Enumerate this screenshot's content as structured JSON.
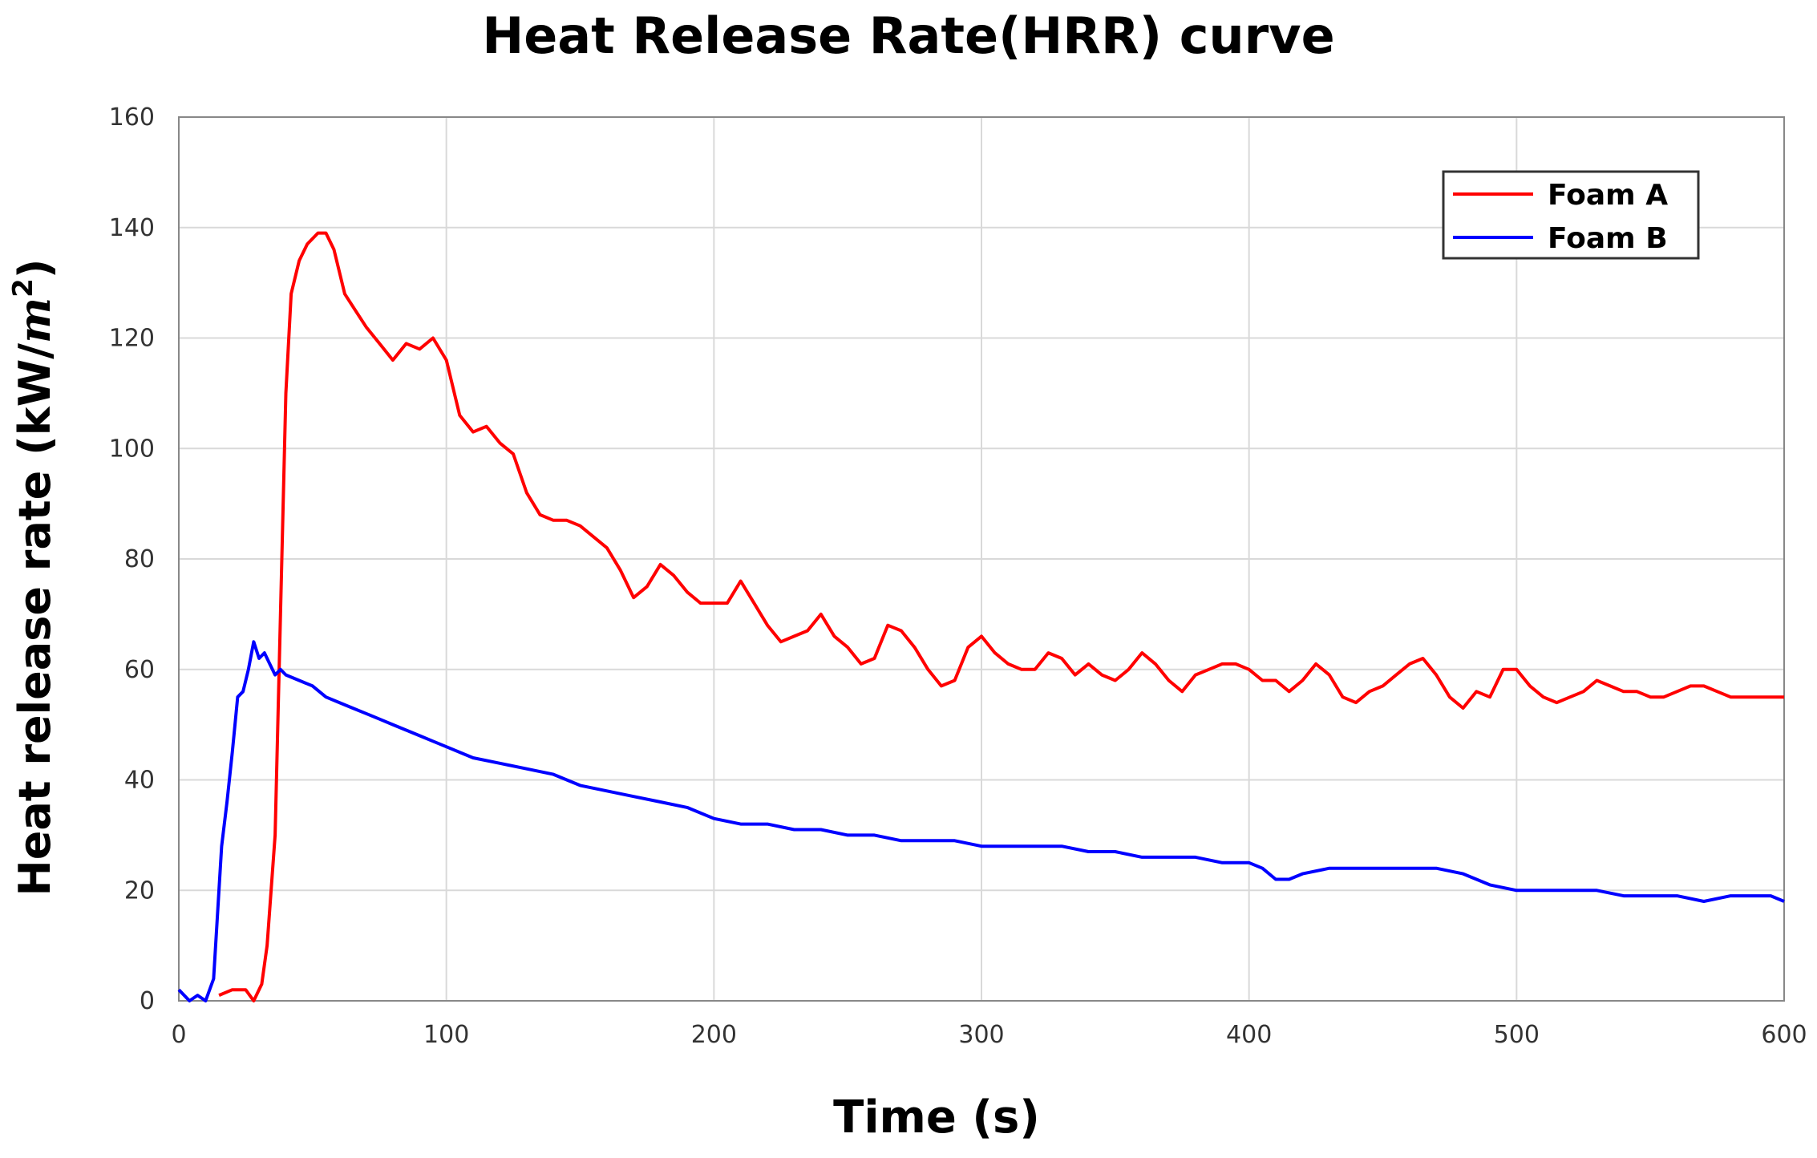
{
  "chart_data": {
    "type": "line",
    "title": "Heat Release Rate(HRR) curve",
    "xlabel": "Time (s)",
    "ylabel_prefix": "Heat release rate (kW/",
    "ylabel_unit_var": "m",
    "ylabel_unit_exp": "2",
    "ylabel_suffix": ")",
    "xlim": [
      0,
      600
    ],
    "ylim": [
      0,
      160
    ],
    "xticks": [
      0,
      100,
      200,
      300,
      400,
      500,
      600
    ],
    "yticks": [
      0,
      20,
      40,
      60,
      80,
      100,
      120,
      140,
      160
    ],
    "grid": true,
    "legend_position": "top-right",
    "series": [
      {
        "name": "Foam A",
        "color": "#ff0000",
        "x": [
          0,
          10,
          15,
          20,
          25,
          28,
          31,
          33,
          36,
          38,
          40,
          42,
          45,
          48,
          52,
          55,
          58,
          62,
          66,
          70,
          75,
          80,
          85,
          90,
          95,
          100,
          105,
          110,
          115,
          120,
          125,
          130,
          135,
          140,
          145,
          150,
          155,
          160,
          165,
          170,
          175,
          180,
          185,
          190,
          195,
          200,
          205,
          210,
          215,
          220,
          225,
          230,
          235,
          240,
          245,
          250,
          255,
          260,
          265,
          270,
          275,
          280,
          285,
          290,
          295,
          300,
          305,
          310,
          315,
          320,
          325,
          330,
          335,
          340,
          345,
          350,
          355,
          360,
          365,
          370,
          375,
          380,
          385,
          390,
          395,
          400,
          405,
          410,
          415,
          420,
          425,
          430,
          435,
          440,
          445,
          450,
          455,
          460,
          465,
          470,
          475,
          480,
          485,
          490,
          495,
          500,
          505,
          510,
          515,
          520,
          525,
          530,
          535,
          540,
          545,
          550,
          555,
          560,
          565,
          570,
          575,
          580,
          585,
          590,
          595,
          600
        ],
        "y": [
          null,
          null,
          1,
          2,
          2,
          0,
          3,
          10,
          30,
          70,
          110,
          128,
          134,
          137,
          139,
          139,
          136,
          128,
          125,
          122,
          119,
          116,
          119,
          118,
          120,
          116,
          106,
          103,
          104,
          101,
          99,
          92,
          88,
          87,
          87,
          86,
          84,
          82,
          78,
          73,
          75,
          79,
          77,
          74,
          72,
          72,
          72,
          76,
          72,
          68,
          65,
          66,
          67,
          70,
          66,
          64,
          61,
          62,
          68,
          67,
          64,
          60,
          57,
          58,
          64,
          66,
          63,
          61,
          60,
          60,
          63,
          62,
          59,
          61,
          59,
          58,
          60,
          63,
          61,
          58,
          56,
          59,
          60,
          61,
          61,
          60,
          58,
          58,
          56,
          58,
          61,
          59,
          55,
          54,
          56,
          57,
          59,
          61,
          62,
          59,
          55,
          53,
          56,
          55,
          60,
          60,
          57,
          55,
          54,
          55,
          56,
          58,
          57,
          56,
          56,
          55,
          55,
          56,
          57,
          57,
          56,
          55,
          55,
          55,
          55,
          55
        ]
      },
      {
        "name": "Foam B",
        "color": "#0000ff",
        "x": [
          0,
          4,
          7,
          10,
          13,
          16,
          18,
          20,
          22,
          24,
          26,
          28,
          30,
          32,
          34,
          36,
          38,
          40,
          45,
          50,
          55,
          60,
          65,
          70,
          75,
          80,
          85,
          90,
          95,
          100,
          110,
          120,
          130,
          140,
          150,
          160,
          170,
          180,
          190,
          200,
          210,
          220,
          230,
          240,
          250,
          260,
          270,
          280,
          290,
          300,
          310,
          320,
          330,
          340,
          350,
          360,
          370,
          380,
          390,
          400,
          405,
          410,
          415,
          420,
          430,
          440,
          450,
          460,
          470,
          480,
          485,
          490,
          500,
          510,
          520,
          530,
          540,
          550,
          560,
          570,
          580,
          590,
          595,
          600
        ],
        "y": [
          2,
          0,
          1,
          0,
          4,
          28,
          36,
          45,
          55,
          56,
          60,
          65,
          62,
          63,
          61,
          59,
          60,
          59,
          58,
          57,
          55,
          54,
          53,
          52,
          51,
          50,
          49,
          48,
          47,
          46,
          44,
          43,
          42,
          41,
          39,
          38,
          37,
          36,
          35,
          33,
          32,
          32,
          31,
          31,
          30,
          30,
          29,
          29,
          29,
          28,
          28,
          28,
          28,
          27,
          27,
          26,
          26,
          26,
          25,
          25,
          24,
          22,
          22,
          23,
          24,
          24,
          24,
          24,
          24,
          23,
          22,
          21,
          20,
          20,
          20,
          20,
          19,
          19,
          19,
          18,
          19,
          19,
          19,
          18
        ]
      }
    ]
  }
}
